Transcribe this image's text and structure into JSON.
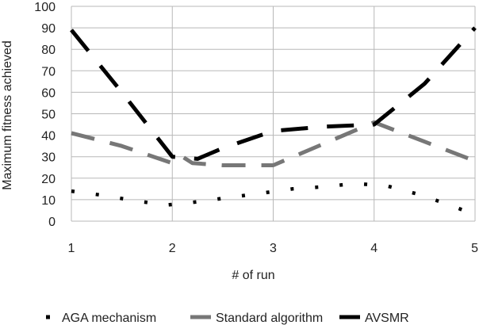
{
  "chart_data": {
    "type": "line",
    "title": "",
    "xlabel": "# of run",
    "ylabel": "Maximum fitness achieved",
    "xlim": [
      1,
      5
    ],
    "ylim": [
      0,
      100
    ],
    "x_ticks": [
      1,
      2,
      3,
      4,
      5
    ],
    "y_ticks": [
      0,
      10,
      20,
      30,
      40,
      50,
      60,
      70,
      80,
      90,
      100
    ],
    "grid": "both",
    "legend_position": "bottom",
    "series": [
      {
        "name": "AGA mechanism",
        "color": "#000000",
        "style": "dotted",
        "x": [
          1,
          1.32,
          1.63,
          1.94,
          2.25,
          2.56,
          2.88,
          3.19,
          3.5,
          3.81,
          4.12,
          4.44,
          4.75,
          5
        ],
        "values": [
          14,
          12,
          9.5,
          7.5,
          9,
          11,
          13,
          15,
          16,
          17.5,
          16.5,
          12.5,
          7.5,
          3
        ]
      },
      {
        "name": "Standard algorithm",
        "color": "#777777",
        "style": "dashed",
        "x": [
          1,
          1.5,
          1.75,
          2,
          2.1,
          2.2,
          2.5,
          2.75,
          3,
          3.5,
          4,
          4.5,
          5
        ],
        "values": [
          41,
          35,
          31,
          27,
          30,
          27,
          26,
          26,
          26,
          36,
          46,
          37,
          28
        ]
      },
      {
        "name": "AVSMR",
        "color": "#000000",
        "style": "dashed",
        "x": [
          1,
          1.5,
          2,
          2.25,
          2.5,
          3,
          3.5,
          4,
          4.5,
          5
        ],
        "values": [
          89,
          60,
          30,
          29,
          34,
          42,
          44,
          45,
          64,
          90
        ]
      }
    ]
  }
}
